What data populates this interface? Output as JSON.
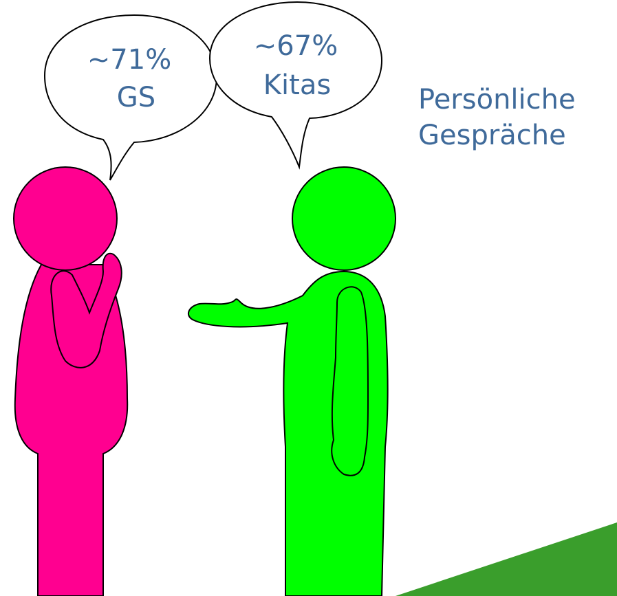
{
  "bubbles": [
    {
      "lines": [
        "~71%",
        "GS"
      ]
    },
    {
      "lines": [
        "~67%",
        "Kitas"
      ]
    }
  ],
  "label": {
    "lines": [
      "Persönliche",
      "Gespräche"
    ]
  }
}
